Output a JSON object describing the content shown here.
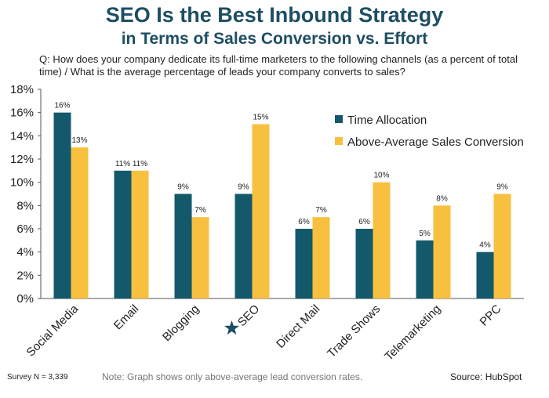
{
  "title": {
    "line1": "SEO Is the Best Inbound Strategy",
    "line2": "in Terms of Sales Conversion vs. Effort"
  },
  "question": "Q: How does your company dedicate its full-time marketers to the following channels (as a percent of total time) / What is the average percentage of leads your company converts to sales?",
  "footer": {
    "survey": "Survey N = 3,339",
    "note": "Note: Graph shows only above-average lead conversion rates.",
    "source": "Source: HubSpot"
  },
  "chart_data": {
    "type": "bar",
    "categories": [
      "Social Media",
      "Email",
      "Blogging",
      "SEO",
      "Direct Mail",
      "Trade Shows",
      "Telemarketing",
      "PPC"
    ],
    "highlighted_category": "SEO",
    "highlight_icon": "star-icon",
    "series": [
      {
        "name": "Time Allocation",
        "color": "#13596b",
        "values": [
          16,
          11,
          9,
          9,
          6,
          6,
          5,
          4
        ],
        "labels": [
          "16%",
          "11%",
          "9%",
          "9%",
          "6%",
          "6%",
          "5%",
          "4%"
        ]
      },
      {
        "name": "Above-Average Sales Conversion",
        "color": "#f8c03f",
        "values": [
          13,
          11,
          7,
          15,
          7,
          10,
          8,
          9
        ],
        "labels": [
          "13%",
          "11%",
          "7%",
          "15%",
          "7%",
          "10%",
          "8%",
          "9%"
        ]
      }
    ],
    "yticks": [
      0,
      2,
      4,
      6,
      8,
      10,
      12,
      14,
      16,
      18
    ],
    "ytick_labels": [
      "0%",
      "2%",
      "4%",
      "6%",
      "8%",
      "10%",
      "12%",
      "14%",
      "16%",
      "18%"
    ],
    "ylim": [
      0,
      18
    ],
    "grid": false,
    "legend_position": "top-right"
  }
}
